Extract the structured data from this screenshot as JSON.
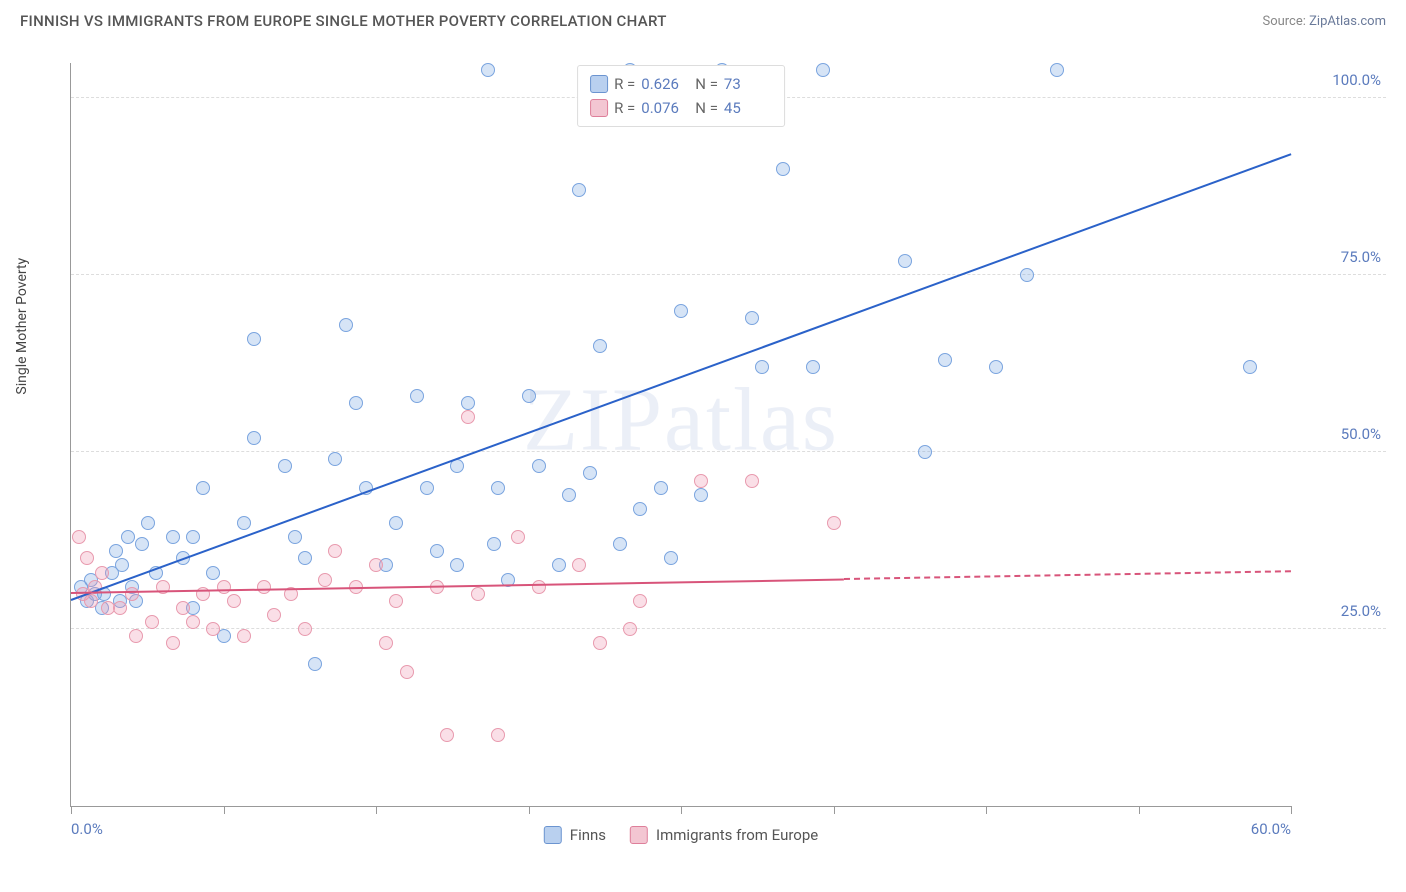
{
  "header": {
    "title": "FINNISH VS IMMIGRANTS FROM EUROPE SINGLE MOTHER POVERTY CORRELATION CHART",
    "source_prefix": "Source: ",
    "source_name": "ZipAtlas.com"
  },
  "chart": {
    "type": "scatter",
    "background_color": "#ffffff",
    "grid_color": "#dddddd",
    "axis_color": "#999999",
    "label_color": "#5b7bbd",
    "yaxis_title": "Single Mother Poverty",
    "yaxis_title_color": "#444444",
    "watermark": "ZIPatlas",
    "xlim": [
      0,
      60
    ],
    "ylim": [
      0,
      105
    ],
    "xticks": [
      0,
      7.5,
      15,
      22.5,
      30,
      37.5,
      45,
      52.5,
      60
    ],
    "xlabels": {
      "0": "0.0%",
      "60": "60.0%"
    },
    "yticks": [
      25,
      50,
      75,
      100
    ],
    "ylabels": {
      "25": "25.0%",
      "50": "50.0%",
      "75": "75.0%",
      "100": "100.0%"
    },
    "marker_radius": 7,
    "marker_stroke_width": 1.5,
    "series": [
      {
        "name": "Finns",
        "color_fill": "rgba(120,165,225,0.30)",
        "color_stroke": "#7aa4df",
        "swatch_fill": "#b9d0ef",
        "swatch_stroke": "#6b94d0",
        "trend_color": "#2b62c9",
        "trend_width": 2.5,
        "trend": {
          "x1": 0,
          "y1": 29,
          "x2": 60,
          "y2": 92,
          "solid_until_x": 60
        },
        "stats": {
          "R": "0.626",
          "N": "73"
        },
        "points": [
          [
            0.5,
            31
          ],
          [
            0.8,
            29
          ],
          [
            1.2,
            30
          ],
          [
            1.0,
            32
          ],
          [
            1.5,
            28
          ],
          [
            1.6,
            30
          ],
          [
            2.0,
            33
          ],
          [
            2.2,
            36
          ],
          [
            2.4,
            29
          ],
          [
            2.5,
            34
          ],
          [
            2.8,
            38
          ],
          [
            3.0,
            31
          ],
          [
            3.2,
            29
          ],
          [
            3.5,
            37
          ],
          [
            3.8,
            40
          ],
          [
            4.2,
            33
          ],
          [
            5.0,
            38
          ],
          [
            5.5,
            35
          ],
          [
            6.0,
            28
          ],
          [
            6.5,
            45
          ],
          [
            7.5,
            24
          ],
          [
            9.0,
            66
          ],
          [
            9.0,
            52
          ],
          [
            10.5,
            48
          ],
          [
            11.0,
            38
          ],
          [
            12.0,
            20
          ],
          [
            13.5,
            68
          ],
          [
            13.0,
            49
          ],
          [
            14.0,
            57
          ],
          [
            14.5,
            45
          ],
          [
            15.5,
            34
          ],
          [
            16.0,
            40
          ],
          [
            17.0,
            58
          ],
          [
            17.5,
            45
          ],
          [
            18.0,
            36
          ],
          [
            19.0,
            48
          ],
          [
            19.5,
            57
          ],
          [
            20.5,
            104
          ],
          [
            20.8,
            37
          ],
          [
            21.0,
            45
          ],
          [
            21.5,
            32
          ],
          [
            22.5,
            58
          ],
          [
            23.0,
            48
          ],
          [
            24.0,
            34
          ],
          [
            24.5,
            44
          ],
          [
            25.0,
            87
          ],
          [
            25.5,
            47
          ],
          [
            26.0,
            65
          ],
          [
            27.0,
            37
          ],
          [
            27.5,
            104
          ],
          [
            28.0,
            42
          ],
          [
            29.0,
            45
          ],
          [
            29.5,
            35
          ],
          [
            30.0,
            70
          ],
          [
            31.0,
            44
          ],
          [
            32.0,
            104
          ],
          [
            33.5,
            69
          ],
          [
            34.0,
            62
          ],
          [
            35.0,
            90
          ],
          [
            36.5,
            62
          ],
          [
            37.0,
            104
          ],
          [
            41.0,
            77
          ],
          [
            42.0,
            50
          ],
          [
            43.0,
            63
          ],
          [
            45.5,
            62
          ],
          [
            47.0,
            75
          ],
          [
            48.5,
            104
          ],
          [
            58.0,
            62
          ],
          [
            6.0,
            38
          ],
          [
            7.0,
            33
          ],
          [
            8.5,
            40
          ],
          [
            11.5,
            35
          ],
          [
            19.0,
            34
          ]
        ]
      },
      {
        "name": "Immigrants from Europe",
        "color_fill": "rgba(240,150,175,0.30)",
        "color_stroke": "#e89aae",
        "swatch_fill": "#f3c6d2",
        "swatch_stroke": "#de7f9a",
        "trend_color": "#d8547a",
        "trend_width": 2,
        "trend": {
          "x1": 0,
          "y1": 30,
          "x2": 60,
          "y2": 33,
          "solid_until_x": 38
        },
        "stats": {
          "R": "0.076",
          "N": "45"
        },
        "points": [
          [
            0.4,
            38
          ],
          [
            0.6,
            30
          ],
          [
            0.8,
            35
          ],
          [
            1.0,
            29
          ],
          [
            1.2,
            31
          ],
          [
            1.5,
            33
          ],
          [
            1.8,
            28
          ],
          [
            2.4,
            28
          ],
          [
            3.0,
            30
          ],
          [
            3.2,
            24
          ],
          [
            4.0,
            26
          ],
          [
            4.5,
            31
          ],
          [
            5.0,
            23
          ],
          [
            5.5,
            28
          ],
          [
            6.0,
            26
          ],
          [
            6.5,
            30
          ],
          [
            7.0,
            25
          ],
          [
            7.5,
            31
          ],
          [
            8.0,
            29
          ],
          [
            8.5,
            24
          ],
          [
            9.5,
            31
          ],
          [
            10.0,
            27
          ],
          [
            10.8,
            30
          ],
          [
            11.5,
            25
          ],
          [
            12.5,
            32
          ],
          [
            13.0,
            36
          ],
          [
            14.0,
            31
          ],
          [
            15.0,
            34
          ],
          [
            15.5,
            23
          ],
          [
            16.0,
            29
          ],
          [
            16.5,
            19
          ],
          [
            18.0,
            31
          ],
          [
            18.5,
            10
          ],
          [
            19.5,
            55
          ],
          [
            20.0,
            30
          ],
          [
            21.0,
            10
          ],
          [
            22.0,
            38
          ],
          [
            23.0,
            31
          ],
          [
            25.0,
            34
          ],
          [
            26.0,
            23
          ],
          [
            27.5,
            25
          ],
          [
            28.0,
            29
          ],
          [
            31.0,
            46
          ],
          [
            33.5,
            46
          ],
          [
            37.5,
            40
          ]
        ]
      }
    ],
    "legend_top": {
      "R_label": "R =",
      "N_label": "N ="
    },
    "legend_bottom": {
      "items": [
        "Finns",
        "Immigrants from Europe"
      ]
    }
  }
}
